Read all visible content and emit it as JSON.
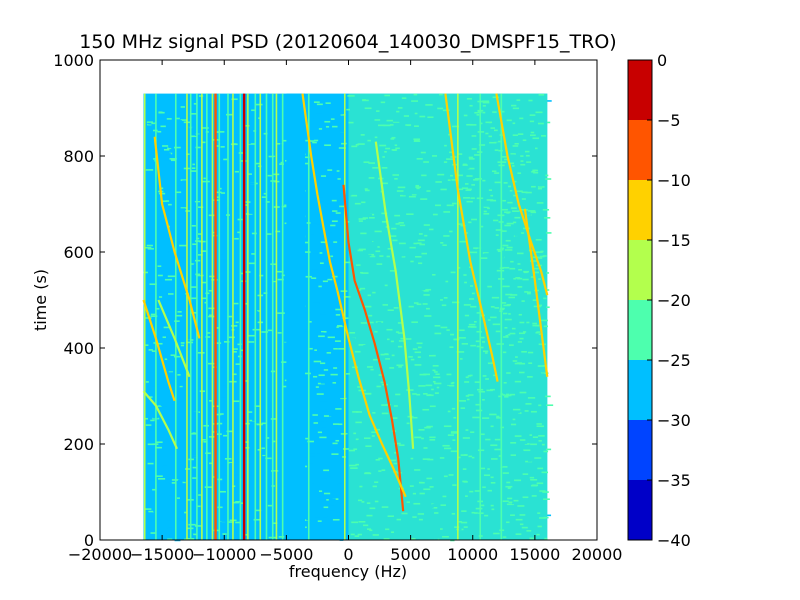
{
  "chart_data": {
    "type": "heatmap",
    "title": "150 MHz signal PSD (20120604_140030_DMSPF15_TRO)",
    "xlabel": "frequency (Hz)",
    "ylabel": "time (s)",
    "xlim": [
      -20000,
      20000
    ],
    "ylim": [
      0,
      1000
    ],
    "x_ticks": [
      -20000,
      -15000,
      -10000,
      -5000,
      0,
      5000,
      10000,
      15000,
      20000
    ],
    "x_tick_labels": [
      "−20000",
      "−15000",
      "−10000",
      "−5000",
      "0",
      "5000",
      "10000",
      "15000",
      "20000"
    ],
    "y_ticks": [
      0,
      200,
      400,
      600,
      800,
      1000
    ],
    "y_tick_labels": [
      "0",
      "200",
      "400",
      "600",
      "800",
      "1000"
    ],
    "data_extent": {
      "freq_range": [
        -16500,
        16000
      ],
      "time_range": [
        0,
        930
      ]
    },
    "colorbar": {
      "range": [
        -40,
        0
      ],
      "ticks": [
        0,
        -5,
        -10,
        -15,
        -20,
        -25,
        -30,
        -35,
        -40
      ],
      "tick_labels": [
        "0",
        "−5",
        "−10",
        "−15",
        "−20",
        "−25",
        "−30",
        "−35",
        "−40"
      ],
      "levels": [
        {
          "from": -40,
          "to": -35,
          "color": "#0000c8"
        },
        {
          "from": -35,
          "to": -30,
          "color": "#0044ff"
        },
        {
          "from": -30,
          "to": -25,
          "color": "#00bfff"
        },
        {
          "from": -25,
          "to": -20,
          "color": "#4dffae"
        },
        {
          "from": -20,
          "to": -15,
          "color": "#b3ff4d"
        },
        {
          "from": -15,
          "to": -10,
          "color": "#ffd100"
        },
        {
          "from": -10,
          "to": -5,
          "color": "#ff5500"
        },
        {
          "from": -5,
          "to": 0,
          "color": "#c80000"
        }
      ]
    },
    "background_level": -27,
    "noisy_band": {
      "from": 0,
      "to": 16000,
      "level": -23
    },
    "dark_band": {
      "from": -5000,
      "to": -3500,
      "level": -28
    },
    "vertical_lines": [
      {
        "freq": -16400,
        "level": -17
      },
      {
        "freq": -15500,
        "level": -22
      },
      {
        "freq": -13900,
        "level": -22
      },
      {
        "freq": -13000,
        "level": -17
      },
      {
        "freq": -12700,
        "level": -22
      },
      {
        "freq": -12200,
        "level": -22
      },
      {
        "freq": -11800,
        "level": -17
      },
      {
        "freq": -11400,
        "level": -22
      },
      {
        "freq": -10950,
        "level": -17
      },
      {
        "freq": -10700,
        "level": -8
      },
      {
        "freq": -10400,
        "level": -22
      },
      {
        "freq": -9700,
        "level": -22
      },
      {
        "freq": -9300,
        "level": -17
      },
      {
        "freq": -8700,
        "level": -22
      },
      {
        "freq": -8400,
        "level": -3
      },
      {
        "freq": -8100,
        "level": -17
      },
      {
        "freq": -7500,
        "level": -22
      },
      {
        "freq": -7100,
        "level": -17
      },
      {
        "freq": -6600,
        "level": -22
      },
      {
        "freq": -6100,
        "level": -22
      },
      {
        "freq": -5800,
        "level": -17
      },
      {
        "freq": -5300,
        "level": -22
      },
      {
        "freq": -3200,
        "level": -22
      },
      {
        "freq": -300,
        "level": -17
      },
      {
        "freq": 8800,
        "level": -17
      },
      {
        "freq": 10600,
        "level": -22
      },
      {
        "freq": 12300,
        "level": -22
      }
    ],
    "tracks": [
      {
        "level": -12,
        "points": [
          [
            -16500,
            500
          ],
          [
            -15500,
            420
          ],
          [
            -14500,
            330
          ],
          [
            -14000,
            290
          ]
        ]
      },
      {
        "level": -17,
        "points": [
          [
            -16500,
            310
          ],
          [
            -15500,
            280
          ],
          [
            -14500,
            230
          ],
          [
            -13800,
            190
          ]
        ]
      },
      {
        "level": -12,
        "points": [
          [
            -15600,
            840
          ],
          [
            -15000,
            700
          ],
          [
            -14000,
            600
          ],
          [
            -12800,
            500
          ],
          [
            -12000,
            420
          ]
        ]
      },
      {
        "level": -17,
        "points": [
          [
            -15300,
            500
          ],
          [
            -14000,
            420
          ],
          [
            -12800,
            340
          ]
        ]
      },
      {
        "level": -12,
        "points": [
          [
            -3700,
            930
          ],
          [
            -3000,
            800
          ],
          [
            -2500,
            720
          ],
          [
            -2000,
            650
          ],
          [
            -1500,
            580
          ],
          [
            -900,
            520
          ]
        ]
      },
      {
        "level": -10,
        "points": [
          [
            -400,
            740
          ],
          [
            0,
            620
          ],
          [
            500,
            540
          ],
          [
            1300,
            480
          ],
          [
            2100,
            410
          ],
          [
            2900,
            330
          ],
          [
            3500,
            250
          ],
          [
            4000,
            170
          ],
          [
            4400,
            60
          ]
        ]
      },
      {
        "level": -12,
        "points": [
          [
            -900,
            520
          ],
          [
            0,
            420
          ],
          [
            800,
            340
          ],
          [
            1700,
            260
          ],
          [
            2700,
            200
          ],
          [
            3600,
            150
          ],
          [
            4600,
            90
          ]
        ]
      },
      {
        "level": -17,
        "points": [
          [
            2200,
            830
          ],
          [
            3000,
            680
          ],
          [
            3800,
            560
          ],
          [
            4500,
            420
          ],
          [
            4900,
            300
          ],
          [
            5200,
            190
          ]
        ]
      },
      {
        "level": -12,
        "points": [
          [
            7800,
            930
          ],
          [
            8800,
            730
          ],
          [
            9800,
            580
          ],
          [
            10800,
            470
          ],
          [
            11600,
            380
          ],
          [
            12000,
            330
          ]
        ]
      },
      {
        "level": -12,
        "points": [
          [
            11900,
            930
          ],
          [
            12800,
            800
          ],
          [
            13700,
            700
          ],
          [
            14700,
            620
          ],
          [
            15500,
            560
          ],
          [
            16000,
            510
          ]
        ]
      },
      {
        "level": -12,
        "points": [
          [
            14200,
            690
          ],
          [
            15000,
            540
          ],
          [
            15600,
            420
          ],
          [
            16000,
            340
          ]
        ]
      }
    ]
  }
}
